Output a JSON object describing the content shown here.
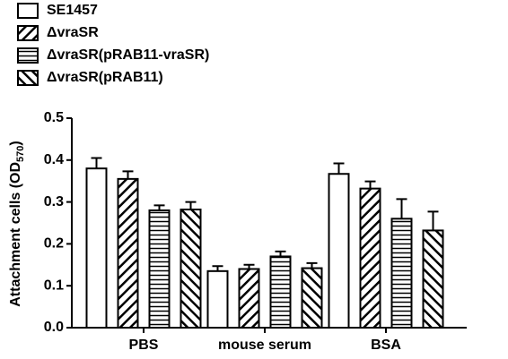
{
  "chart_data": {
    "type": "bar",
    "y_label": "Attachment cells (OD",
    "y_label_sub": "570",
    "y_label_end": ")",
    "categories": [
      "PBS",
      "mouse serum",
      "BSA"
    ],
    "series": [
      {
        "name": "SE1457",
        "color": "#000000",
        "hatch": "none",
        "values": [
          0.38,
          0.135,
          0.367
        ],
        "errors": [
          0.025,
          0.012,
          0.025
        ]
      },
      {
        "name": "ΔvraSR",
        "color": "#000000",
        "hatch": "diagonal-up",
        "values": [
          0.355,
          0.14,
          0.332
        ],
        "errors": [
          0.018,
          0.01,
          0.017
        ]
      },
      {
        "name": "ΔvraSR(pRAB11-vraSR)",
        "color": "#000000",
        "hatch": "horizontal",
        "values": [
          0.28,
          0.17,
          0.26
        ],
        "errors": [
          0.012,
          0.012,
          0.047
        ]
      },
      {
        "name": "ΔvraSR(pRAB11)",
        "color": "#000000",
        "hatch": "diagonal-down",
        "values": [
          0.282,
          0.142,
          0.232
        ],
        "errors": [
          0.018,
          0.012,
          0.045
        ]
      }
    ],
    "ylim": [
      0,
      0.5
    ],
    "yticks": [
      {
        "value": 0,
        "label": "0.0"
      },
      0.1,
      0.2,
      0.3,
      0.4,
      0.5
    ]
  }
}
